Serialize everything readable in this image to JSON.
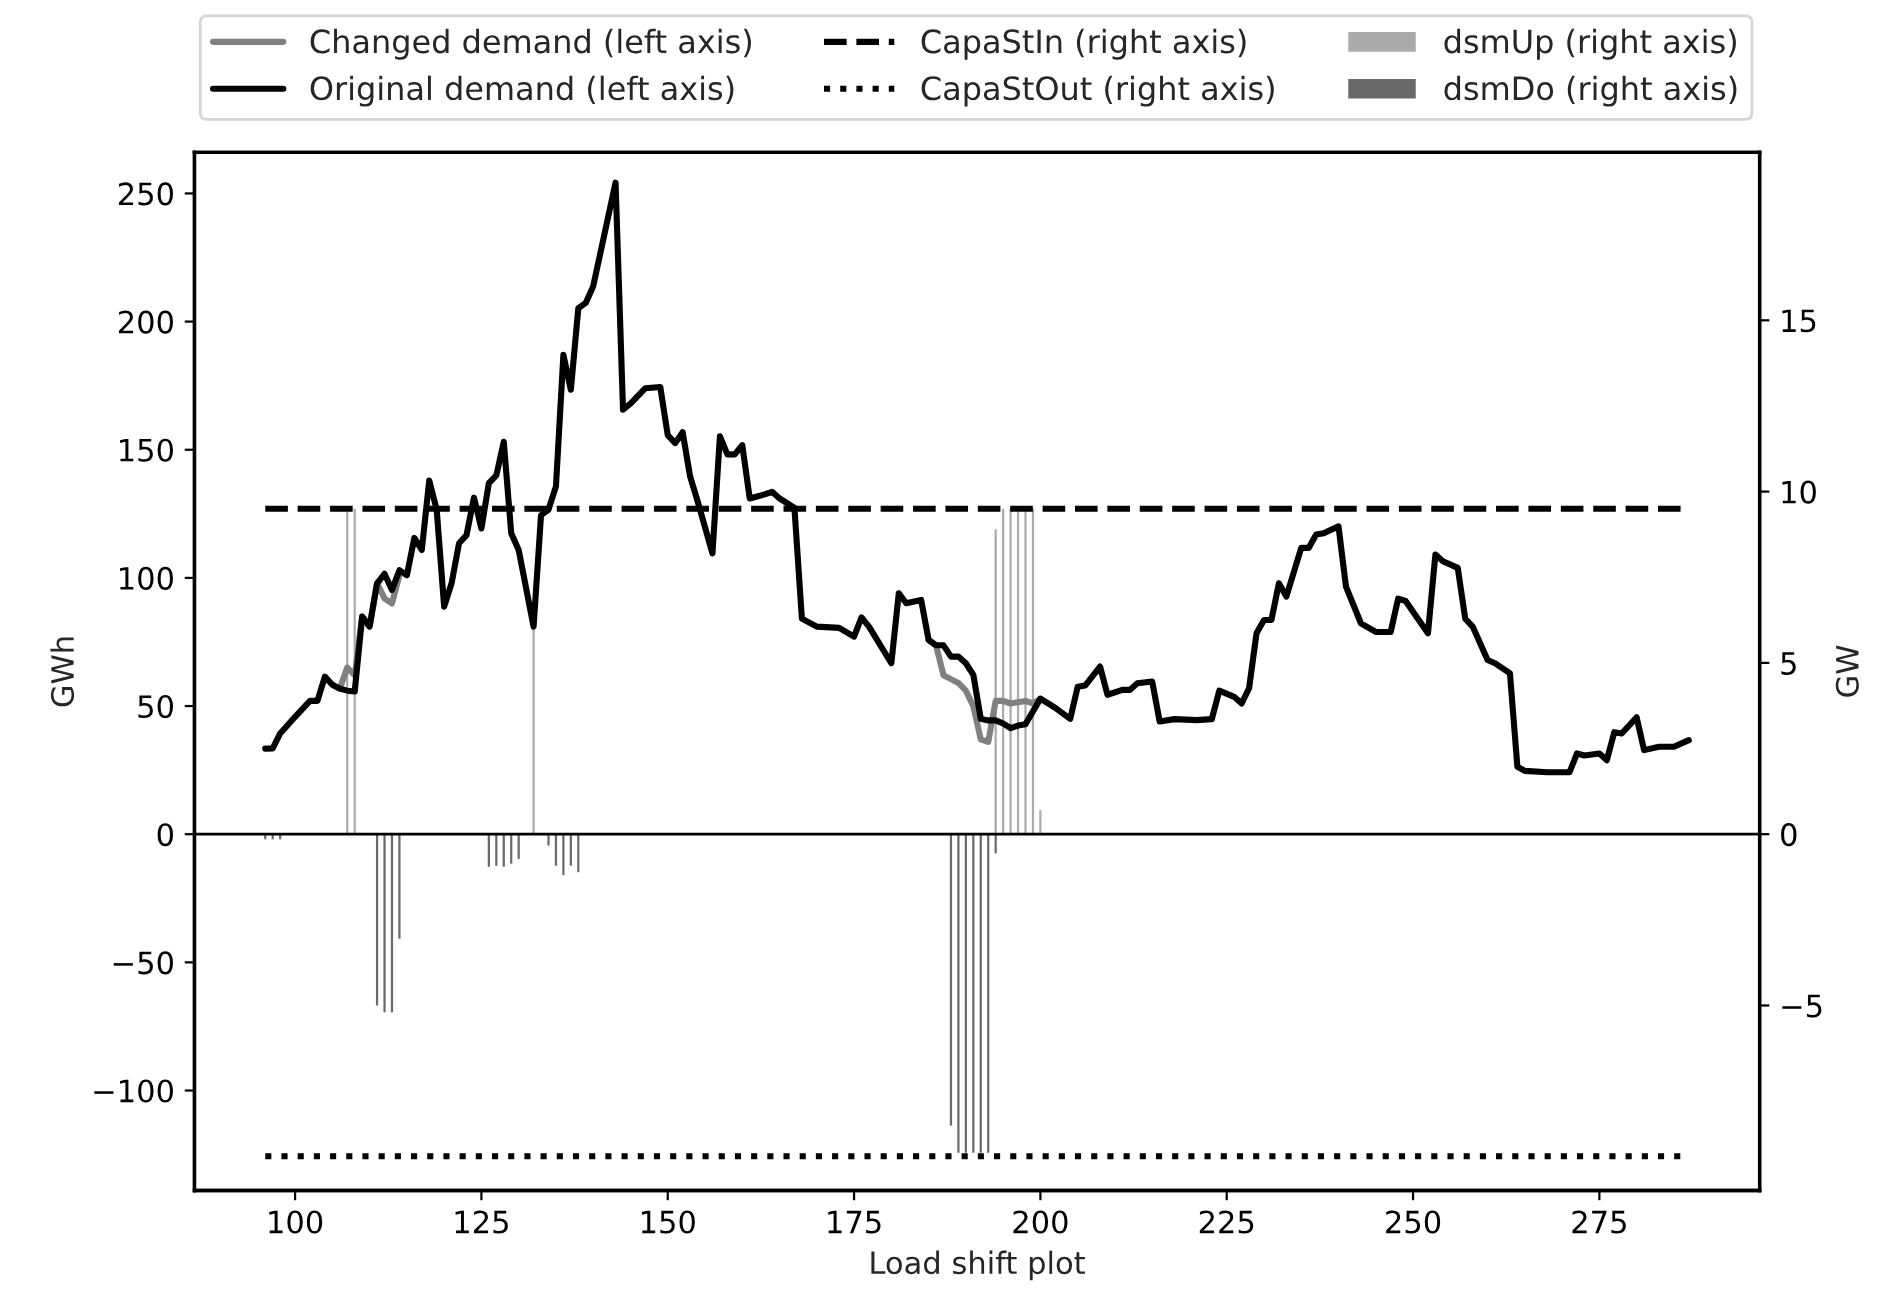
{
  "chart_data": {
    "type": "line",
    "xlabel": "Load shift plot",
    "ylabel": "GWh",
    "y2label": "GW",
    "xlim": [
      86.5,
      296.5
    ],
    "xticks": [
      100,
      125,
      150,
      175,
      200,
      225,
      250,
      275
    ],
    "ylim": [
      -139,
      266
    ],
    "yticks": [
      {
        "value": -100,
        "label": "−100"
      },
      {
        "value": -50,
        "label": "−50"
      },
      0,
      50,
      100,
      150,
      200,
      250
    ],
    "y2lim": [
      -10.4,
      19.9
    ],
    "y2ticks": [
      {
        "value": -5,
        "label": "−5"
      },
      0,
      5,
      10,
      15
    ],
    "grid": false,
    "legend": "top",
    "ref_lines": [
      {
        "axis": "y",
        "value": 0,
        "color": "#000000"
      }
    ],
    "series": [
      {
        "name": "Changed demand (left axis)",
        "color": "#808080",
        "line_style": "solid",
        "x": [
          105,
          106,
          107,
          108,
          109,
          110,
          111,
          112,
          113,
          114,
          116,
          185,
          186,
          187,
          188,
          189,
          190,
          191,
          192,
          193,
          194,
          195,
          196,
          197,
          198,
          199,
          200
        ],
        "values": [
          58.3,
          56.8,
          65,
          62,
          84.9,
          81,
          97.9,
          92,
          90,
          101,
          null,
          75.8,
          73.7,
          62,
          60.5,
          59,
          56,
          50,
          37,
          36,
          52,
          52,
          51,
          51.5,
          52,
          51,
          52.9
        ]
      },
      {
        "name": "Original demand (left axis)",
        "color": "#000000",
        "line_style": "solid",
        "x": [
          96,
          97,
          98,
          100,
          102,
          103,
          104,
          105,
          106,
          107,
          108,
          109,
          110,
          111,
          112,
          113,
          114,
          115,
          116,
          117,
          118,
          119,
          120,
          121,
          122,
          123,
          124,
          125,
          126,
          127,
          128,
          129,
          130,
          132,
          133,
          134,
          135,
          136,
          137,
          138,
          139,
          140,
          143,
          144,
          145,
          147,
          149,
          150,
          151,
          152,
          153,
          154,
          156,
          157,
          158,
          159,
          160,
          161,
          163,
          164,
          165,
          167,
          168,
          170,
          173,
          175,
          176,
          177,
          180,
          181,
          182,
          184,
          185,
          186,
          187,
          188,
          189,
          190,
          191,
          192,
          193,
          194,
          195,
          196,
          197,
          198,
          200,
          202,
          204,
          205,
          206,
          208,
          209,
          211,
          212,
          213,
          215,
          216,
          218,
          221,
          223,
          224,
          226,
          227,
          228,
          229,
          230,
          231,
          232,
          233,
          235,
          236,
          237,
          238,
          240,
          241,
          243,
          245,
          247,
          248,
          249,
          252,
          253,
          254,
          256,
          257,
          258,
          260,
          261,
          263,
          264,
          265,
          268,
          271,
          272,
          273,
          275,
          276,
          277,
          278,
          280,
          281,
          283,
          285,
          287
        ],
        "values": [
          33.4,
          33.5,
          39.3,
          45.8,
          52,
          52,
          61.5,
          58.3,
          56.8,
          56,
          55.7,
          84.9,
          81,
          97.9,
          101.6,
          95.3,
          103,
          101,
          115.6,
          110.9,
          138,
          126.6,
          88.8,
          97.9,
          113.5,
          116.7,
          131.3,
          119.3,
          137,
          140,
          153.1,
          117.4,
          110.9,
          81,
          124.5,
          126.6,
          135.7,
          187,
          173.4,
          205.2,
          207.3,
          213.8,
          254.2,
          165.6,
          168,
          174,
          174.5,
          155.7,
          152.6,
          156.8,
          139.6,
          130,
          109.6,
          155.2,
          148.2,
          148.2,
          151.8,
          131,
          132.6,
          133.6,
          131,
          127.3,
          84.1,
          81,
          80.5,
          77.1,
          84.6,
          81,
          66.7,
          94,
          90.1,
          91.4,
          75.8,
          73.7,
          73.7,
          69.3,
          69.3,
          66.7,
          62.2,
          45,
          44.4,
          44.4,
          43.2,
          41.4,
          42.4,
          42.9,
          52.9,
          49.3,
          45,
          57.5,
          58,
          65.4,
          54.4,
          56.3,
          56.3,
          58.9,
          59.6,
          44,
          44.9,
          44.5,
          44.9,
          56,
          53.6,
          51,
          57,
          78.4,
          83.6,
          83.6,
          97.9,
          92.7,
          111.7,
          111.7,
          116.9,
          117.4,
          120.1,
          96.6,
          82.3,
          78.9,
          78.9,
          91.9,
          91,
          78.4,
          109.1,
          106.5,
          103.9,
          84.1,
          81,
          68,
          66.7,
          62.8,
          26.3,
          24.7,
          24.2,
          24.2,
          31.5,
          30.7,
          31.5,
          28.9,
          39.8,
          39.3,
          45.6,
          32.8,
          34.1,
          34.1,
          36.7
        ]
      },
      {
        "name": "CapaStIn (right axis)",
        "axis": "y2",
        "color": "#000000",
        "line_style": "dashed",
        "x": [
          96,
          287
        ],
        "values": [
          9.5,
          9.5
        ]
      },
      {
        "name": "CapaStOut (right axis)",
        "axis": "y2",
        "color": "#000000",
        "line_style": "dotted",
        "x": [
          96,
          287
        ],
        "values": [
          -9.4,
          -9.4
        ]
      },
      {
        "name": "dsmUp (right axis)",
        "type": "bar",
        "axis": "y2",
        "color": "#aaaaaa",
        "x": [
          107,
          108,
          132,
          194,
          195,
          196,
          197,
          198,
          199,
          200
        ],
        "values": [
          9.5,
          9.5,
          6.0,
          8.9,
          9.5,
          9.5,
          9.5,
          9.5,
          9.5,
          0.7
        ]
      },
      {
        "name": "dsmDo (right axis)",
        "type": "bar",
        "axis": "y2",
        "color": "#6a6a6a",
        "x": [
          96,
          97,
          98,
          111,
          112,
          113,
          114,
          126,
          127,
          128,
          129,
          130,
          134,
          135,
          136,
          137,
          138,
          188,
          189,
          190,
          191,
          192,
          193,
          194
        ],
        "values": [
          -0.15,
          -0.15,
          -0.15,
          -5.0,
          -5.2,
          -5.2,
          -3.05,
          -0.95,
          -0.92,
          -0.95,
          -0.86,
          -0.72,
          -0.33,
          -0.92,
          -1.19,
          -0.92,
          -1.11,
          -8.5,
          -9.3,
          -9.3,
          -9.3,
          -9.3,
          -9.3,
          -0.56
        ]
      }
    ]
  }
}
